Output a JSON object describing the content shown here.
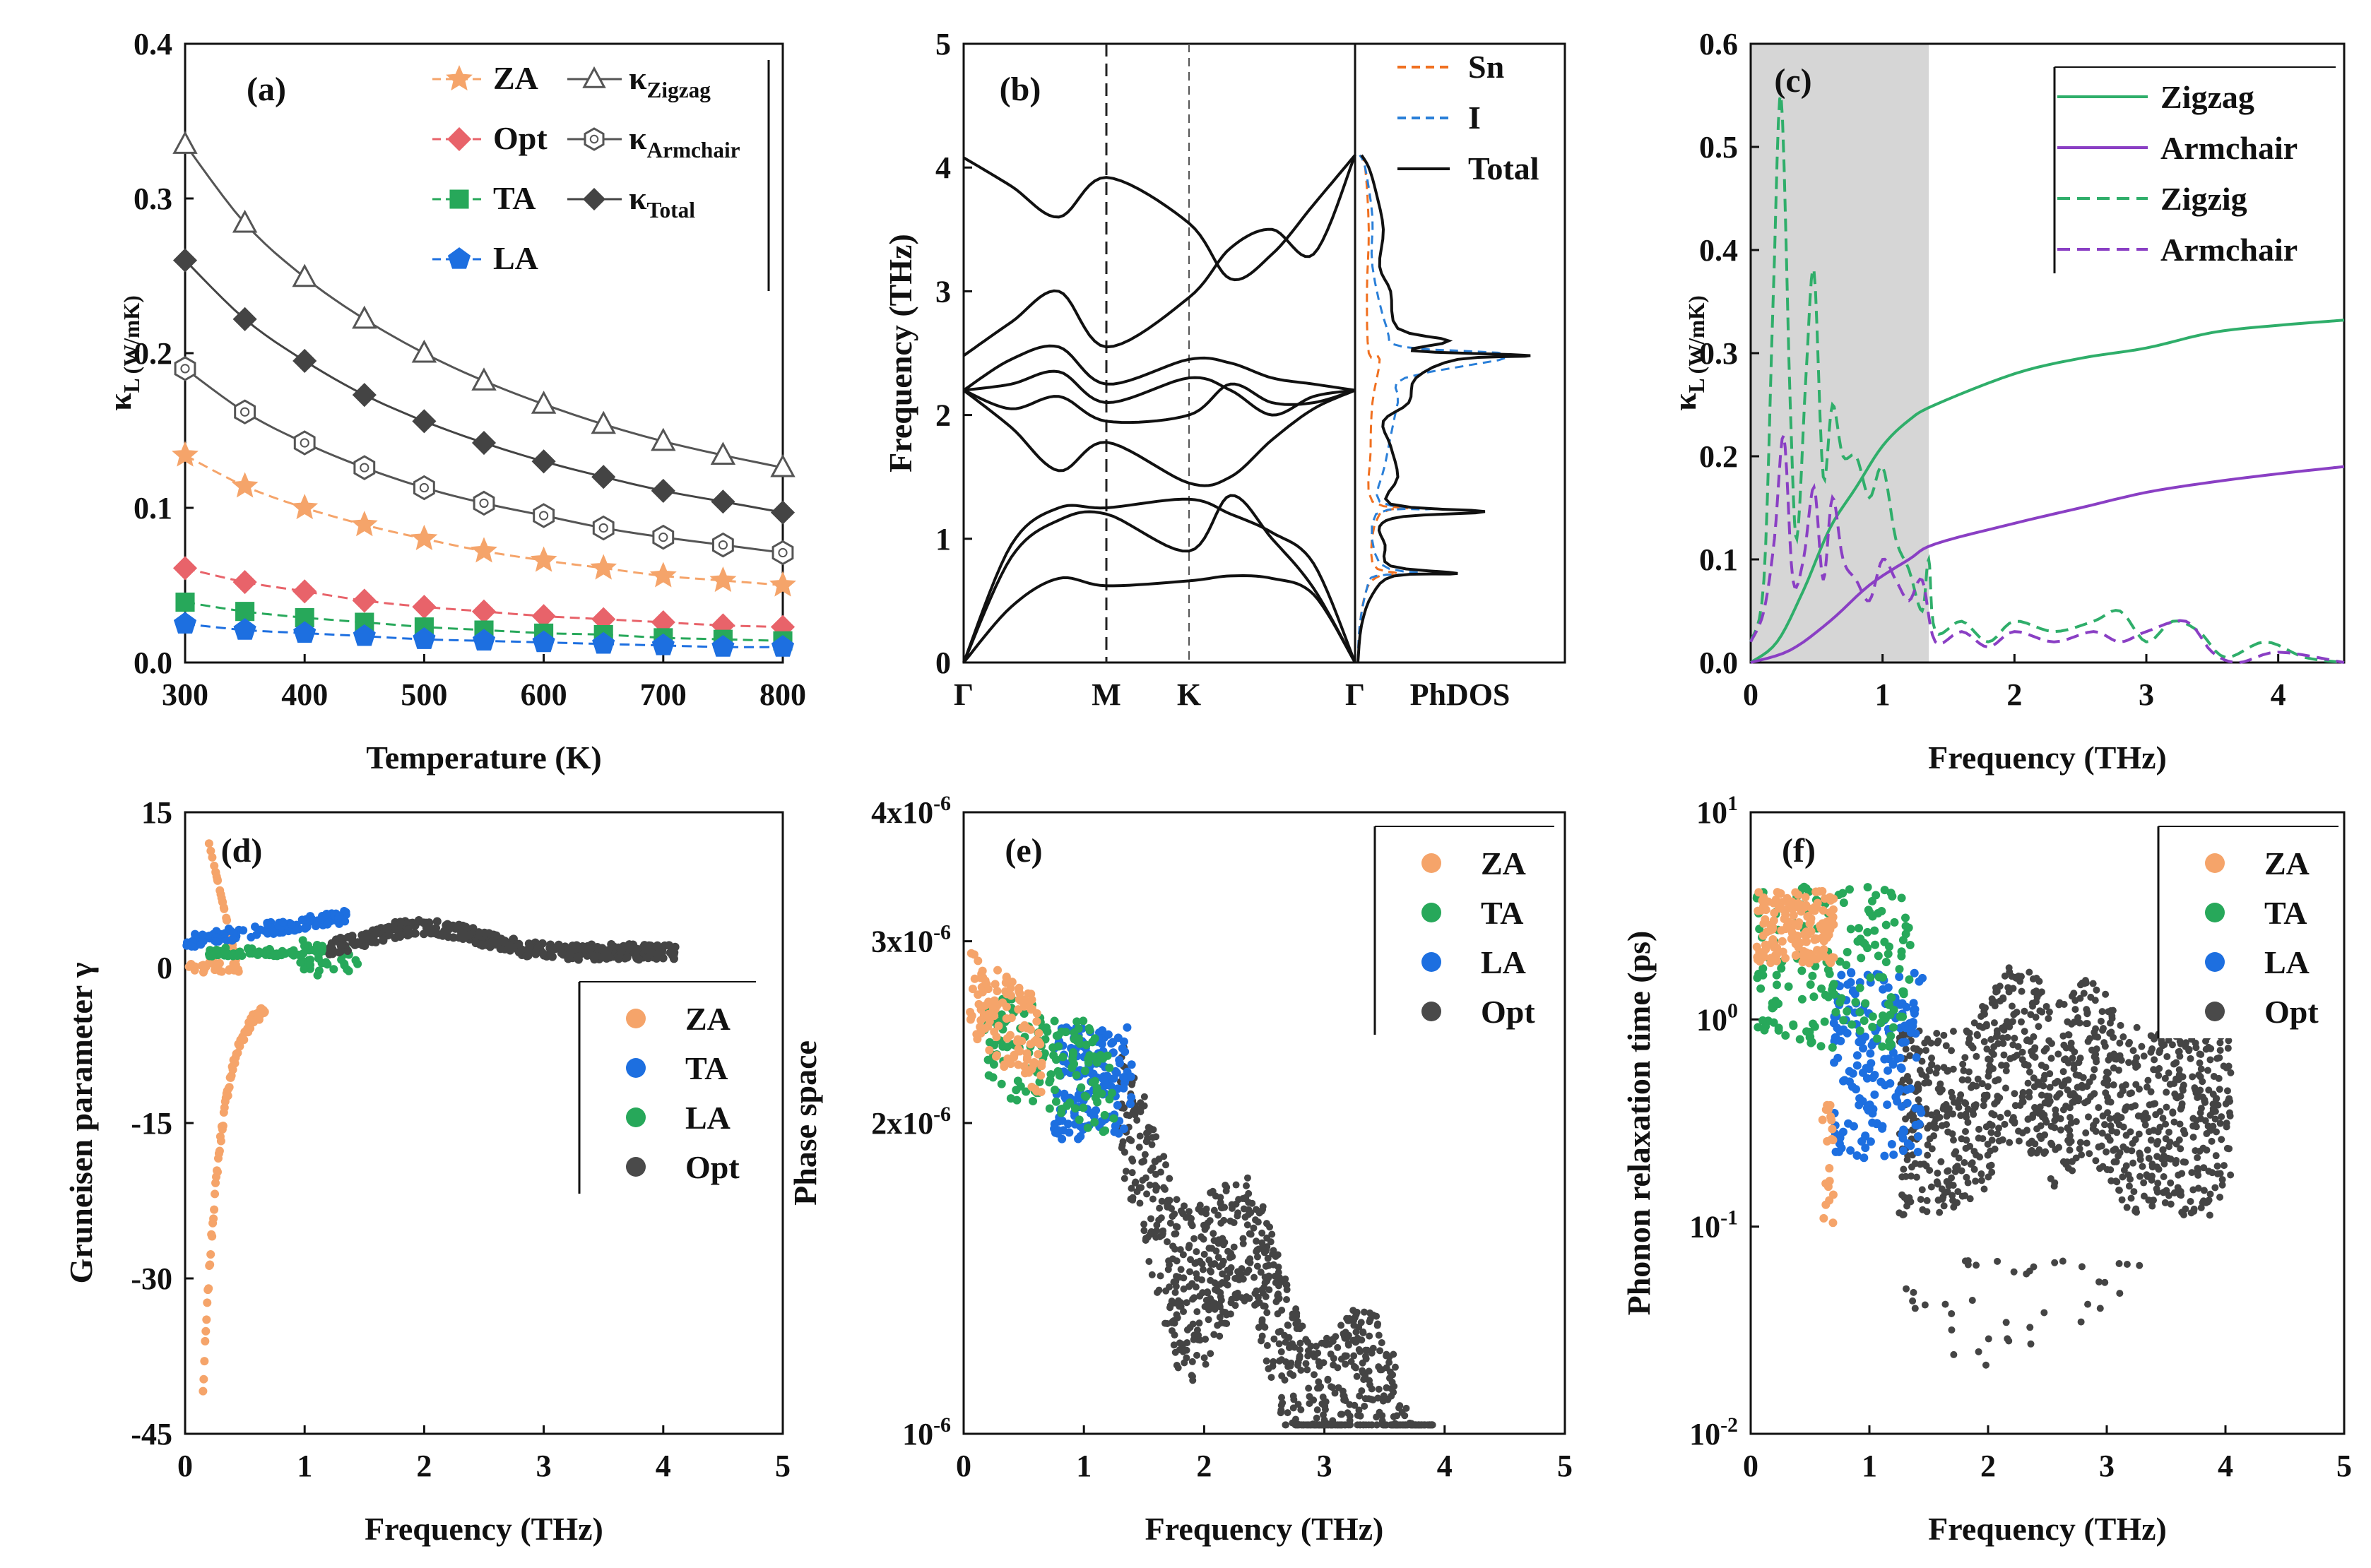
{
  "colors": {
    "ZA": "#f5a46a",
    "Opt": "#e8636a",
    "TA": "#27a85a",
    "LA": "#1d6fe0",
    "optgray": "#4a4a4a",
    "sn": "#f07020",
    "i": "#2a7fd8",
    "zig": "#2fae6a",
    "arm": "#8a3fc4",
    "shade": "#d6d6d6",
    "black": "#111111",
    "hollow": "#555555"
  },
  "chart_data": [
    {
      "type": "line",
      "panel": "(a)",
      "xlabel": "Temperature (K)",
      "ylabel": "κL (W/mK)",
      "ylabel_main": "κ",
      "ylabel_sub": "L",
      "ylabel_rest": " (W/mK)",
      "xlim": [
        300,
        800
      ],
      "ylim": [
        0,
        0.4
      ],
      "xticks": [
        300,
        400,
        500,
        600,
        700,
        800
      ],
      "yticks": [
        0.0,
        0.1,
        0.2,
        0.3,
        0.4
      ],
      "ytick_labels": [
        "0.0",
        "0.1",
        "0.2",
        "0.3",
        "0.4"
      ],
      "x": [
        300,
        350,
        400,
        450,
        500,
        550,
        600,
        650,
        700,
        750,
        800
      ],
      "series": [
        {
          "key": "ZA",
          "label": "ZA",
          "marker": "star",
          "values": [
            0.134,
            0.114,
            0.1,
            0.089,
            0.08,
            0.072,
            0.066,
            0.061,
            0.056,
            0.053,
            0.05
          ]
        },
        {
          "key": "Opt",
          "label": "Opt",
          "marker": "diamond",
          "values": [
            0.061,
            0.052,
            0.046,
            0.04,
            0.036,
            0.033,
            0.03,
            0.028,
            0.026,
            0.024,
            0.023
          ]
        },
        {
          "key": "TA",
          "label": "TA",
          "marker": "square",
          "values": [
            0.039,
            0.033,
            0.029,
            0.026,
            0.023,
            0.021,
            0.019,
            0.018,
            0.016,
            0.015,
            0.014
          ]
        },
        {
          "key": "LA",
          "label": "LA",
          "marker": "pentagon",
          "values": [
            0.025,
            0.021,
            0.019,
            0.017,
            0.015,
            0.014,
            0.013,
            0.012,
            0.011,
            0.01,
            0.01
          ]
        },
        {
          "key": "Zig",
          "label_main": "κ",
          "label_sub": "Zigzag",
          "marker": "triangle",
          "values": [
            0.335,
            0.284,
            0.249,
            0.222,
            0.2,
            0.182,
            0.167,
            0.154,
            0.143,
            0.134,
            0.126
          ]
        },
        {
          "key": "Arm",
          "label_main": "κ",
          "label_sub": "Armchair",
          "marker": "hexagon",
          "values": [
            0.19,
            0.162,
            0.142,
            0.126,
            0.113,
            0.103,
            0.095,
            0.087,
            0.081,
            0.076,
            0.071
          ]
        },
        {
          "key": "Tot",
          "label_main": "κ",
          "label_sub": "Total",
          "marker": "diamondfill",
          "values": [
            0.26,
            0.222,
            0.195,
            0.173,
            0.156,
            0.142,
            0.13,
            0.12,
            0.111,
            0.104,
            0.097
          ]
        }
      ]
    },
    {
      "type": "line",
      "panel": "(b)",
      "ylabel": "Frequency (THz)",
      "ylim": [
        0,
        5
      ],
      "yticks": [
        0,
        1,
        2,
        3,
        4,
        5
      ],
      "kpoints": [
        "Γ",
        "M",
        "K",
        "Γ"
      ],
      "dos_xlabel": "PhDOS",
      "legend": [
        "Sn",
        "I",
        "Total"
      ],
      "bands": [
        [
          0,
          0.45,
          0.68,
          0.62,
          0.66,
          0.7,
          0.68,
          0.55,
          0
        ],
        [
          0,
          0.85,
          1.15,
          1.2,
          0.9,
          1.35,
          1.0,
          0.6,
          0
        ],
        [
          0,
          0.95,
          1.25,
          1.25,
          1.32,
          1.2,
          1.05,
          0.8,
          0
        ],
        [
          2.2,
          1.9,
          1.55,
          1.78,
          1.45,
          1.5,
          1.8,
          2.05,
          2.2
        ],
        [
          2.2,
          2.05,
          2.15,
          1.95,
          2.0,
          2.25,
          2.1,
          2.1,
          2.2
        ],
        [
          2.2,
          2.25,
          2.35,
          2.1,
          2.3,
          2.2,
          2.0,
          2.15,
          2.2
        ],
        [
          2.2,
          2.45,
          2.55,
          2.25,
          2.45,
          2.42,
          2.3,
          2.25,
          2.2
        ],
        [
          2.48,
          2.75,
          3.0,
          2.55,
          2.95,
          3.35,
          3.5,
          3.3,
          4.1
        ],
        [
          4.08,
          3.85,
          3.6,
          3.92,
          3.55,
          3.1,
          3.3,
          3.7,
          4.1
        ]
      ],
      "dos_total": [
        [
          0,
          0
        ],
        [
          0.3,
          0.02
        ],
        [
          0.55,
          0.08
        ],
        [
          0.7,
          0.2
        ],
        [
          0.72,
          0.55
        ],
        [
          0.78,
          0.18
        ],
        [
          0.95,
          0.15
        ],
        [
          1.1,
          0.12
        ],
        [
          1.18,
          0.25
        ],
        [
          1.22,
          0.7
        ],
        [
          1.28,
          0.18
        ],
        [
          1.5,
          0.22
        ],
        [
          1.75,
          0.18
        ],
        [
          1.95,
          0.14
        ],
        [
          2.1,
          0.28
        ],
        [
          2.3,
          0.32
        ],
        [
          2.45,
          0.55
        ],
        [
          2.48,
          0.95
        ],
        [
          2.52,
          0.3
        ],
        [
          2.6,
          0.5
        ],
        [
          2.7,
          0.22
        ],
        [
          3.0,
          0.18
        ],
        [
          3.2,
          0.12
        ],
        [
          3.5,
          0.14
        ],
        [
          3.8,
          0.1
        ],
        [
          4.0,
          0.06
        ],
        [
          4.1,
          0.02
        ]
      ],
      "dos_sn": [
        [
          0,
          0
        ],
        [
          0.3,
          0.01
        ],
        [
          0.6,
          0.05
        ],
        [
          0.7,
          0.12
        ],
        [
          0.72,
          0.22
        ],
        [
          0.8,
          0.08
        ],
        [
          1.2,
          0.12
        ],
        [
          1.25,
          0.35
        ],
        [
          1.3,
          0.08
        ],
        [
          1.7,
          0.07
        ],
        [
          2.1,
          0.08
        ],
        [
          2.45,
          0.12
        ],
        [
          2.5,
          0.06
        ],
        [
          3.0,
          0.05
        ],
        [
          3.5,
          0.06
        ],
        [
          4.0,
          0.04
        ],
        [
          4.1,
          0.01
        ]
      ],
      "dos_i": [
        [
          0,
          0
        ],
        [
          0.3,
          0.01
        ],
        [
          0.6,
          0.05
        ],
        [
          0.7,
          0.1
        ],
        [
          0.72,
          0.35
        ],
        [
          0.8,
          0.12
        ],
        [
          1.2,
          0.1
        ],
        [
          1.24,
          0.4
        ],
        [
          1.3,
          0.12
        ],
        [
          1.6,
          0.15
        ],
        [
          2.1,
          0.22
        ],
        [
          2.3,
          0.26
        ],
        [
          2.48,
          0.85
        ],
        [
          2.55,
          0.25
        ],
        [
          2.7,
          0.16
        ],
        [
          3.2,
          0.08
        ],
        [
          3.6,
          0.08
        ],
        [
          4.0,
          0.04
        ],
        [
          4.1,
          0.01
        ]
      ]
    },
    {
      "type": "line",
      "panel": "(c)",
      "xlabel": "Frequency (THz)",
      "ylabel_main": "κ",
      "ylabel_sub": "L",
      "ylabel_rest": " (W/mK)",
      "xlim": [
        0,
        4.5
      ],
      "ylim": [
        0,
        0.6
      ],
      "xticks": [
        0,
        1,
        2,
        3,
        4
      ],
      "yticks": [
        0.0,
        0.1,
        0.2,
        0.3,
        0.4,
        0.5,
        0.6
      ],
      "ytick_labels": [
        "0.0",
        "0.1",
        "0.2",
        "0.3",
        "0.4",
        "0.5",
        "0.6"
      ],
      "shaded_region": [
        0,
        1.35
      ],
      "series": [
        {
          "label": "Zigzag",
          "style": "solid",
          "color": "zig",
          "points": [
            [
              0,
              0
            ],
            [
              0.2,
              0.02
            ],
            [
              0.4,
              0.07
            ],
            [
              0.6,
              0.13
            ],
            [
              0.8,
              0.17
            ],
            [
              1.0,
              0.21
            ],
            [
              1.2,
              0.235
            ],
            [
              1.4,
              0.25
            ],
            [
              2.0,
              0.28
            ],
            [
              2.5,
              0.295
            ],
            [
              3.0,
              0.305
            ],
            [
              3.5,
              0.32
            ],
            [
              4.0,
              0.327
            ],
            [
              4.5,
              0.332
            ]
          ]
        },
        {
          "label": "Armchair",
          "style": "solid",
          "color": "arm",
          "points": [
            [
              0,
              0
            ],
            [
              0.3,
              0.012
            ],
            [
              0.6,
              0.04
            ],
            [
              0.9,
              0.075
            ],
            [
              1.2,
              0.1
            ],
            [
              1.4,
              0.115
            ],
            [
              2.0,
              0.135
            ],
            [
              2.5,
              0.15
            ],
            [
              3.0,
              0.165
            ],
            [
              3.5,
              0.175
            ],
            [
              4.0,
              0.183
            ],
            [
              4.5,
              0.19
            ]
          ]
        },
        {
          "label": "Zigzig",
          "style": "dashed",
          "color": "zig",
          "points": [
            [
              0,
              0.02
            ],
            [
              0.1,
              0.08
            ],
            [
              0.17,
              0.35
            ],
            [
              0.23,
              0.55
            ],
            [
              0.3,
              0.25
            ],
            [
              0.35,
              0.12
            ],
            [
              0.42,
              0.28
            ],
            [
              0.48,
              0.38
            ],
            [
              0.55,
              0.18
            ],
            [
              0.62,
              0.25
            ],
            [
              0.7,
              0.2
            ],
            [
              0.8,
              0.2
            ],
            [
              0.9,
              0.16
            ],
            [
              1.0,
              0.19
            ],
            [
              1.1,
              0.12
            ],
            [
              1.2,
              0.09
            ],
            [
              1.3,
              0.05
            ],
            [
              1.35,
              0.1
            ],
            [
              1.4,
              0.03
            ],
            [
              1.6,
              0.04
            ],
            [
              1.8,
              0.02
            ],
            [
              2.0,
              0.04
            ],
            [
              2.3,
              0.03
            ],
            [
              2.6,
              0.04
            ],
            [
              2.8,
              0.05
            ],
            [
              3.0,
              0.02
            ],
            [
              3.2,
              0.04
            ],
            [
              3.4,
              0.03
            ],
            [
              3.6,
              0.005
            ],
            [
              3.9,
              0.02
            ],
            [
              4.2,
              0.005
            ],
            [
              4.5,
              0.0
            ]
          ]
        },
        {
          "label": "Armchair",
          "style": "dashed",
          "color": "arm",
          "points": [
            [
              0,
              0.02
            ],
            [
              0.1,
              0.05
            ],
            [
              0.18,
              0.12
            ],
            [
              0.25,
              0.22
            ],
            [
              0.32,
              0.08
            ],
            [
              0.4,
              0.1
            ],
            [
              0.48,
              0.17
            ],
            [
              0.55,
              0.08
            ],
            [
              0.62,
              0.16
            ],
            [
              0.7,
              0.1
            ],
            [
              0.8,
              0.08
            ],
            [
              0.9,
              0.06
            ],
            [
              1.0,
              0.1
            ],
            [
              1.1,
              0.08
            ],
            [
              1.2,
              0.06
            ],
            [
              1.3,
              0.08
            ],
            [
              1.4,
              0.02
            ],
            [
              1.6,
              0.03
            ],
            [
              1.8,
              0.015
            ],
            [
              2.0,
              0.03
            ],
            [
              2.3,
              0.02
            ],
            [
              2.6,
              0.03
            ],
            [
              2.8,
              0.02
            ],
            [
              3.0,
              0.03
            ],
            [
              3.3,
              0.04
            ],
            [
              3.5,
              0.01
            ],
            [
              3.7,
              0.0
            ],
            [
              4.0,
              0.01
            ],
            [
              4.5,
              0.0
            ]
          ]
        }
      ]
    },
    {
      "type": "scatter",
      "panel": "(d)",
      "xlabel": "Frequency (THz)",
      "ylabel": "Gruneisen parameter γ",
      "xlim": [
        0,
        5
      ],
      "ylim": [
        -45,
        15
      ],
      "xticks": [
        0,
        1,
        2,
        3,
        4,
        5
      ],
      "yticks": [
        -45,
        -30,
        -15,
        0,
        15
      ],
      "legend": [
        "ZA",
        "TA",
        "LA",
        "Opt"
      ]
    },
    {
      "type": "scatter",
      "panel": "(e)",
      "xlabel": "Frequency (THz)",
      "ylabel": "Phase space",
      "xlim": [
        0,
        5
      ],
      "ylim": [
        1e-06,
        4e-06
      ],
      "yscale": "log",
      "xticks": [
        0,
        1,
        2,
        3,
        4,
        5
      ],
      "ytick_values": [
        1e-06,
        2e-06,
        3e-06,
        4e-06
      ],
      "ytick_main": [
        "10",
        "2x10",
        "3x10",
        "4x10"
      ],
      "ytick_exp": [
        "-6",
        "-6",
        "-6",
        "-6"
      ],
      "legend": [
        "ZA",
        "TA",
        "LA",
        "Opt"
      ]
    },
    {
      "type": "scatter",
      "panel": "(f)",
      "xlabel": "Frequency (THz)",
      "ylabel": "Phonon relaxation time (ps)",
      "xlim": [
        0,
        5
      ],
      "ylim": [
        0.01,
        10
      ],
      "yscale": "log",
      "xticks": [
        0,
        1,
        2,
        3,
        4,
        5
      ],
      "ytick_values": [
        0.01,
        0.1,
        1,
        10
      ],
      "ytick_main": [
        "10",
        "10",
        "10",
        "10"
      ],
      "ytick_exp": [
        "-2",
        "-1",
        "0",
        "1"
      ],
      "legend": [
        "ZA",
        "TA",
        "LA",
        "Opt"
      ]
    }
  ]
}
